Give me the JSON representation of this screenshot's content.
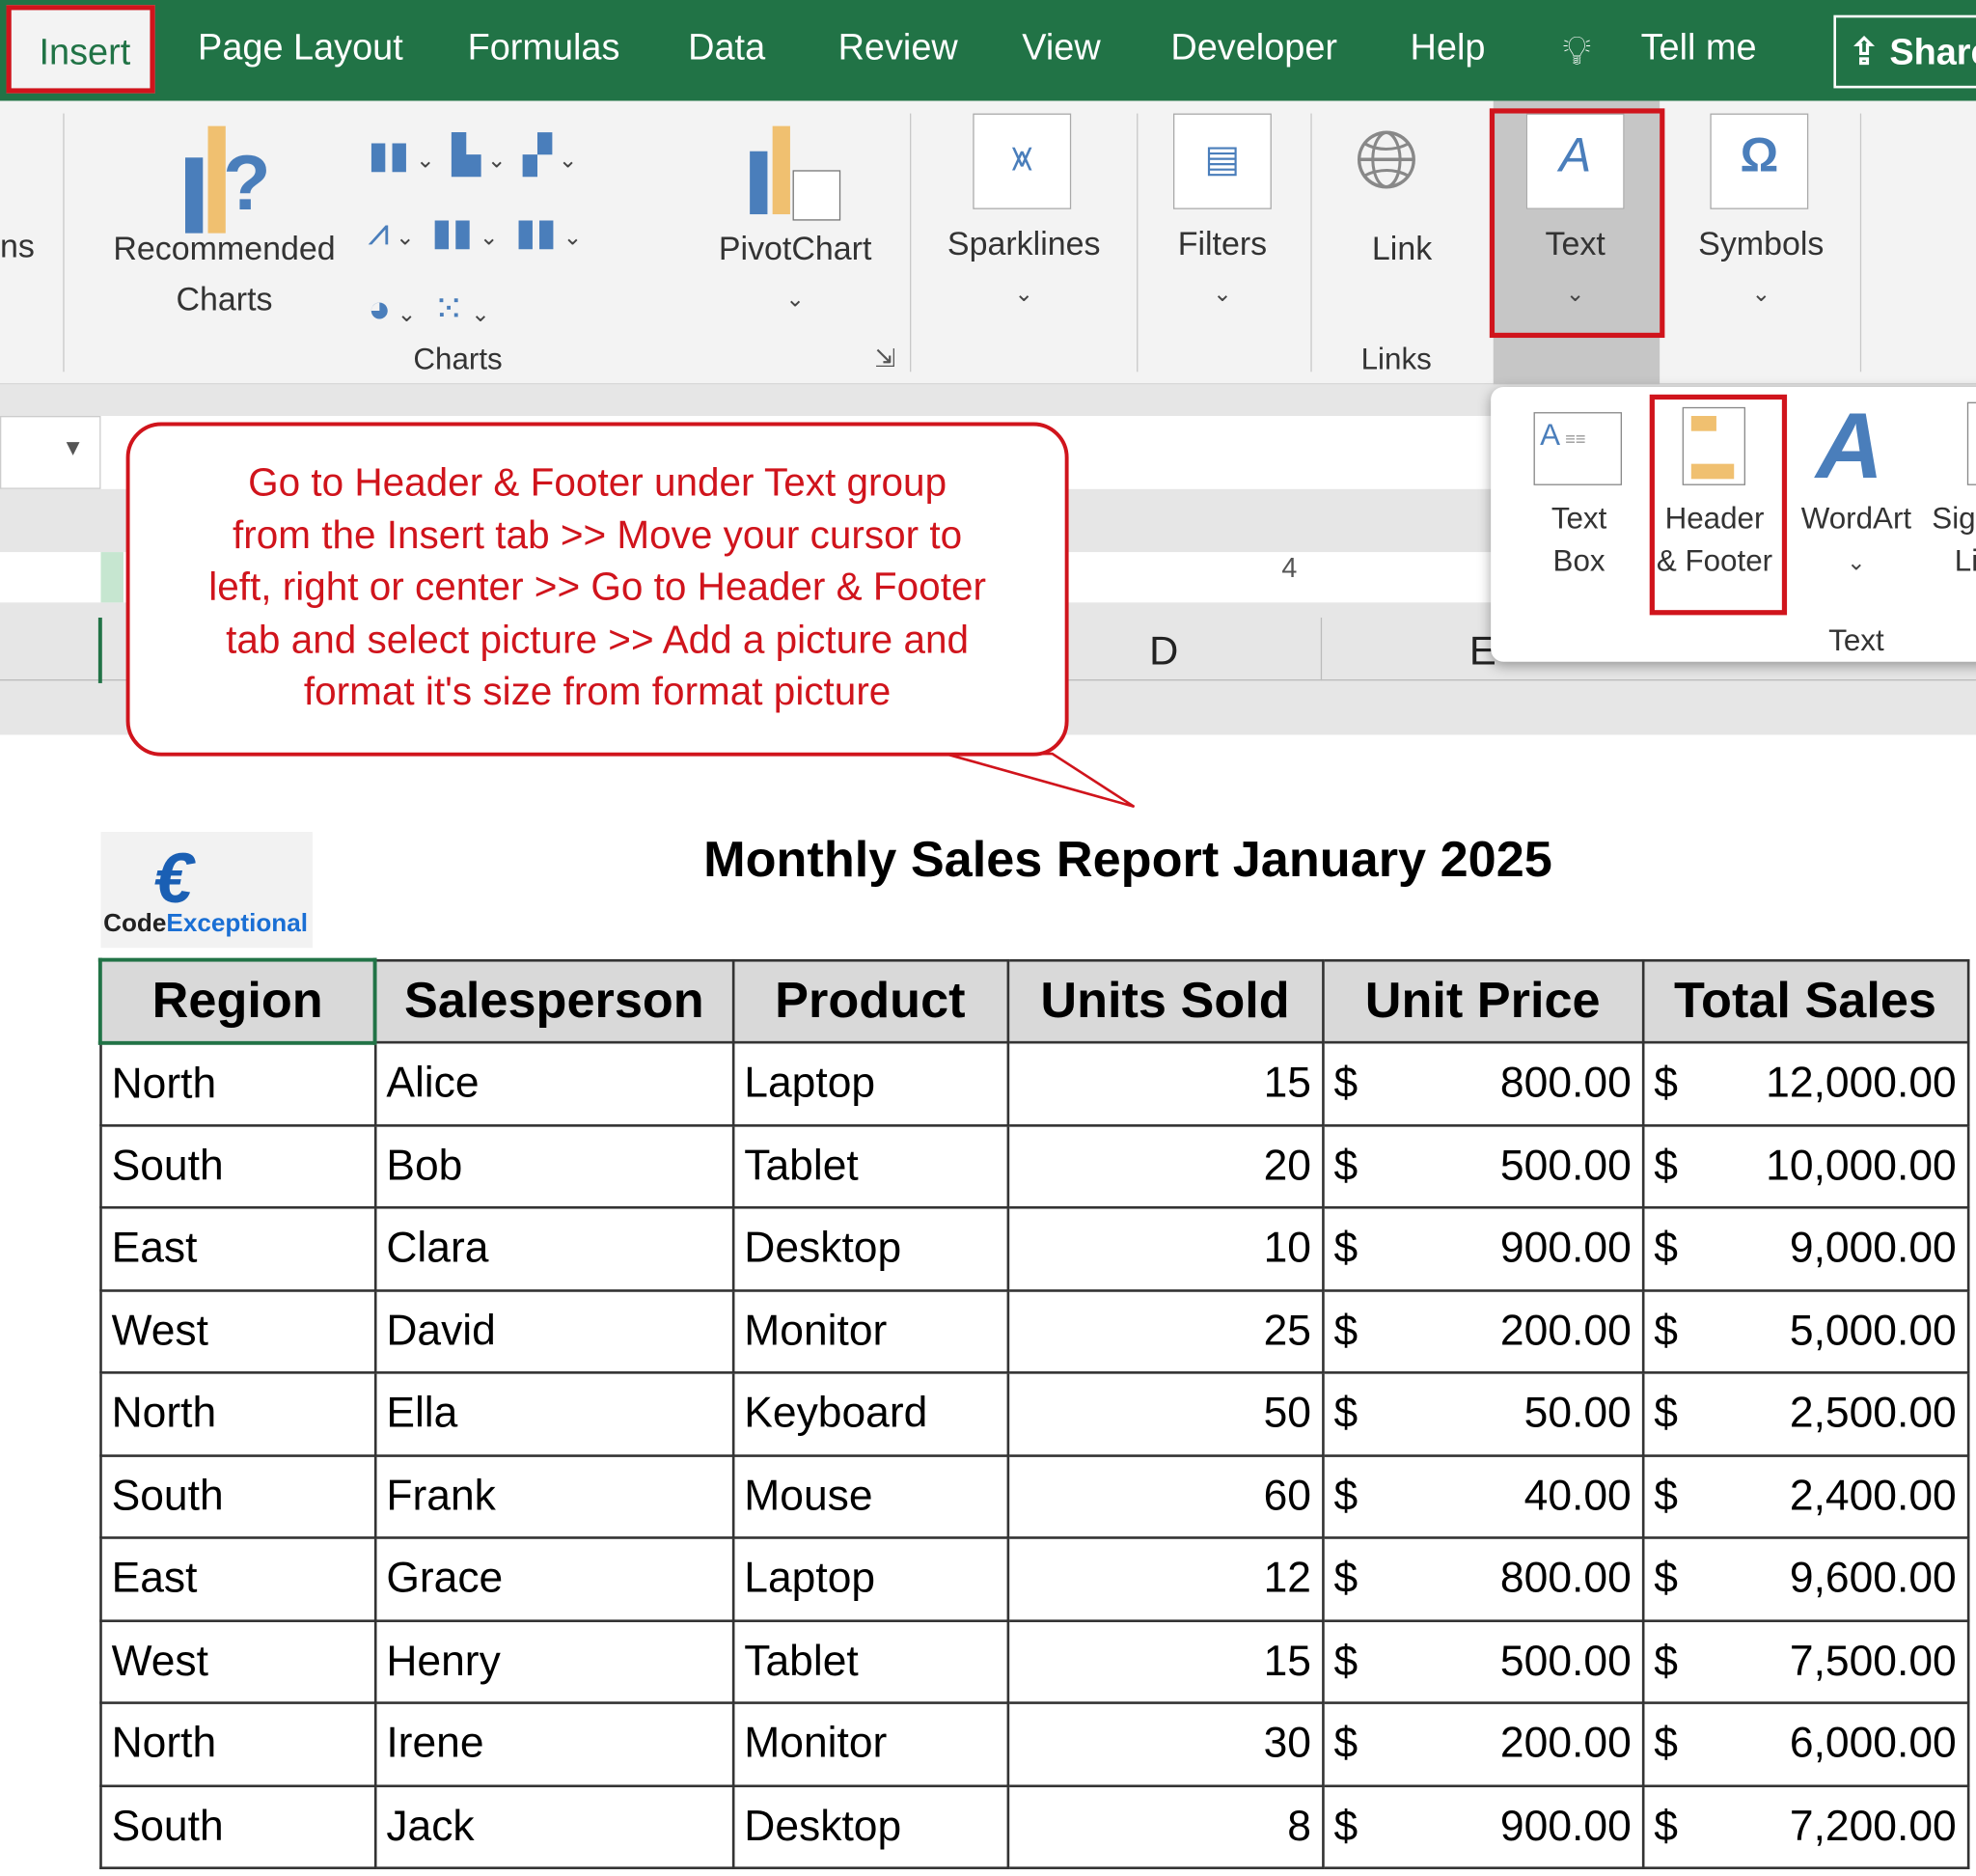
{
  "tabs": [
    "Insert",
    "Page Layout",
    "Formulas",
    "Data",
    "Review",
    "View",
    "Developer",
    "Help",
    "Tell me",
    "Share"
  ],
  "ribbon": {
    "partial_left": "ns",
    "recommended_charts": [
      "Recommended",
      "Charts"
    ],
    "pivotchart": "PivotChart",
    "sparklines": "Sparklines",
    "filters": "Filters",
    "link": "Link",
    "text": "Text",
    "symbols": "Symbols",
    "groups": {
      "charts": "Charts",
      "links": "Links"
    }
  },
  "text_dropdown": {
    "items": [
      [
        "Text",
        "Box"
      ],
      [
        "Header",
        "& Footer"
      ],
      [
        "WordArt",
        ""
      ],
      [
        "Sig",
        "Li"
      ]
    ],
    "group_label": "Text"
  },
  "columns_visible": {
    "d": "D",
    "e": "E"
  },
  "ruler_mark": "4",
  "callout": [
    "Go to Header & Footer under Text group",
    "from the Insert tab >> Move your cursor to",
    "left, right or center >> Go to Header & Footer",
    "tab and select picture >> Add a picture and",
    "format it's size from format picture"
  ],
  "logo": {
    "text1": "Code",
    "text2": "Exceptional"
  },
  "report_title": "Monthly Sales Report January 2025",
  "table": {
    "headers": [
      "Region",
      "Salesperson",
      "Product",
      "Units Sold",
      "Unit Price",
      "Total Sales"
    ],
    "currency": "$",
    "rows": [
      [
        "North",
        "Alice",
        "Laptop",
        "15",
        "800.00",
        "12,000.00"
      ],
      [
        "South",
        "Bob",
        "Tablet",
        "20",
        "500.00",
        "10,000.00"
      ],
      [
        "East",
        "Clara",
        "Desktop",
        "10",
        "900.00",
        "9,000.00"
      ],
      [
        "West",
        "David",
        "Monitor",
        "25",
        "200.00",
        "5,000.00"
      ],
      [
        "North",
        "Ella",
        "Keyboard",
        "50",
        "50.00",
        "2,500.00"
      ],
      [
        "South",
        "Frank",
        "Mouse",
        "60",
        "40.00",
        "2,400.00"
      ],
      [
        "East",
        "Grace",
        "Laptop",
        "12",
        "800.00",
        "9,600.00"
      ],
      [
        "West",
        "Henry",
        "Tablet",
        "15",
        "500.00",
        "7,500.00"
      ],
      [
        "North",
        "Irene",
        "Monitor",
        "30",
        "200.00",
        "6,000.00"
      ],
      [
        "South",
        "Jack",
        "Desktop",
        "8",
        "900.00",
        "7,200.00"
      ]
    ]
  },
  "colors": {
    "excel_green": "#217346",
    "highlight_red": "#d0141c",
    "icon_blue": "#4a7ebb",
    "icon_gold": "#f0c070"
  }
}
